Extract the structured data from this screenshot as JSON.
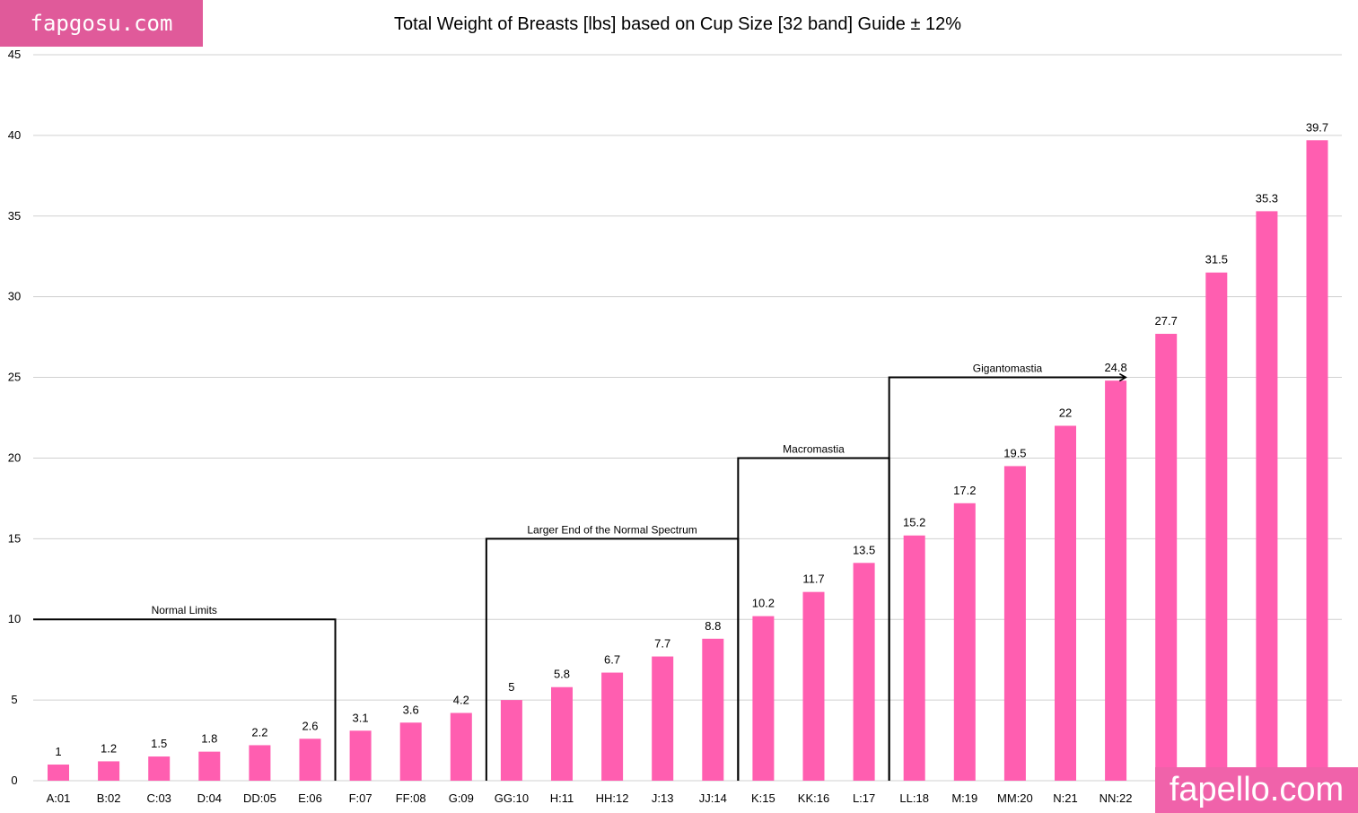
{
  "watermarks": {
    "top": "fapgosu.com",
    "bottom": "fapello.com"
  },
  "colors": {
    "bar": "#ff5eb0",
    "grid": "#d0d0d0",
    "annotation": "#000000"
  },
  "chart_data": {
    "type": "bar",
    "title": "Total Weight of Breasts [lbs] based on Cup Size [32 band] Guide ± 12%",
    "xlabel": "",
    "ylabel": "",
    "ylim": [
      0,
      45
    ],
    "yticks": [
      0,
      5,
      10,
      15,
      20,
      25,
      30,
      35,
      40,
      45
    ],
    "grid": true,
    "categories": [
      "A:01",
      "B:02",
      "C:03",
      "D:04",
      "DD:05",
      "E:06",
      "F:07",
      "FF:08",
      "G:09",
      "GG:10",
      "H:11",
      "HH:12",
      "J:13",
      "JJ:14",
      "K:15",
      "KK:16",
      "L:17",
      "LL:18",
      "M:19",
      "MM:20",
      "N:21",
      "NN:22",
      "",
      "",
      "",
      ""
    ],
    "values": [
      1,
      1.2,
      1.5,
      1.8,
      2.2,
      2.6,
      3.1,
      3.6,
      4.2,
      5,
      5.8,
      6.7,
      7.7,
      8.8,
      10.2,
      11.7,
      13.5,
      15.2,
      17.2,
      19.5,
      22,
      24.8,
      27.7,
      31.5,
      35.3,
      39.7
    ],
    "annotations": [
      {
        "label": "Normal Limits",
        "level": 10,
        "from_category": -1,
        "to_category": 5
      },
      {
        "label": "Larger End of the Normal Spectrum",
        "level": 15,
        "from_category": 8,
        "to_category": 13
      },
      {
        "label": "Macromastia",
        "level": 20,
        "from_category": 13,
        "to_category": 16
      },
      {
        "label": "Gigantomastia",
        "level": 25,
        "from_category": 16,
        "to_category": 20.7,
        "arrow": true
      }
    ]
  }
}
